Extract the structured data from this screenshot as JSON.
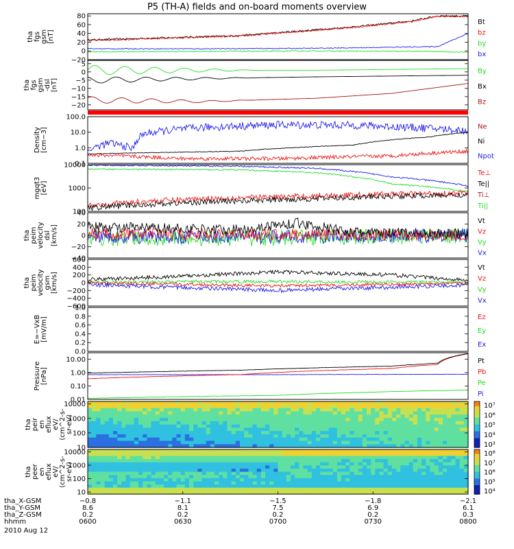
{
  "title": "P5 (TH-A) fields and on-board moments overview",
  "colors": {
    "black": "#000000",
    "red": "#ee1111",
    "green": "#22dd22",
    "blue": "#1a1aee",
    "darkred": "#aa1111"
  },
  "chart_data": [
    {
      "type": "line",
      "id": "fgs_gsm",
      "ylabel": [
        "tha",
        "fgs",
        "gsm",
        "[nT]"
      ],
      "ylim": [
        -20,
        85
      ],
      "yticks": [
        "80",
        "60",
        "40",
        "20",
        "0",
        "−20"
      ],
      "ytick_values": [
        80,
        60,
        40,
        20,
        0,
        -20
      ],
      "legend": [
        {
          "name": "Bt",
          "color": "#000000"
        },
        {
          "name": "bz",
          "color": "#ee1111"
        },
        {
          "name": "by",
          "color": "#22dd22"
        },
        {
          "name": "bx",
          "color": "#1a1aee"
        }
      ],
      "series": [
        {
          "name": "Bt",
          "color": "#000000",
          "points": [
            [
              0,
              25
            ],
            [
              0.2,
              30
            ],
            [
              0.4,
              35
            ],
            [
              0.55,
              45
            ],
            [
              0.7,
              55
            ],
            [
              0.85,
              68
            ],
            [
              0.92,
              80
            ]
          ],
          "noise": 2
        },
        {
          "name": "bz",
          "color": "#ee1111",
          "points": [
            [
              0,
              24
            ],
            [
              0.2,
              29
            ],
            [
              0.4,
              34
            ],
            [
              0.55,
              44
            ],
            [
              0.7,
              54
            ],
            [
              0.85,
              67
            ],
            [
              0.92,
              79
            ]
          ],
          "noise": 2
        },
        {
          "name": "by",
          "color": "#22dd22",
          "points": [
            [
              0,
              -2
            ],
            [
              0.3,
              -1
            ],
            [
              0.6,
              0
            ],
            [
              0.9,
              -1
            ],
            [
              1,
              -3
            ]
          ],
          "noise": 1
        },
        {
          "name": "bx",
          "color": "#1a1aee",
          "points": [
            [
              0,
              5
            ],
            [
              0.3,
              5
            ],
            [
              0.6,
              6
            ],
            [
              0.92,
              10
            ],
            [
              1,
              40
            ]
          ],
          "noise": 1
        }
      ]
    },
    {
      "type": "line",
      "id": "fgs_dsl",
      "ylabel": [
        "tha",
        "fgs",
        "gsm",
        "-dsl",
        "[nT]"
      ],
      "ylim": [
        -23,
        7
      ],
      "yticks": [
        "5",
        "0",
        "−5",
        "−10",
        "−15",
        "−20"
      ],
      "ytick_values": [
        5,
        0,
        -5,
        -10,
        -15,
        -20
      ],
      "legend": [
        {
          "name": "By",
          "color": "#22dd22"
        },
        {
          "name": "Bx",
          "color": "#000000"
        },
        {
          "name": "Bz",
          "color": "#aa1111"
        }
      ],
      "series": [
        {
          "name": "By",
          "color": "#22dd22",
          "points": [
            [
              0,
              1
            ],
            [
              0.3,
              1
            ],
            [
              0.6,
              1
            ],
            [
              1,
              2
            ]
          ],
          "wave": 3
        },
        {
          "name": "Bx",
          "color": "#000000",
          "points": [
            [
              0,
              -5
            ],
            [
              0.3,
              -4
            ],
            [
              0.6,
              -3
            ],
            [
              1,
              -2
            ]
          ],
          "wave": 2
        },
        {
          "name": "Bz",
          "color": "#aa1111",
          "points": [
            [
              0,
              -17
            ],
            [
              0.3,
              -18
            ],
            [
              0.6,
              -16
            ],
            [
              0.8,
              -13
            ],
            [
              1,
              -7
            ]
          ],
          "wave": 2
        }
      ]
    },
    {
      "type": "line",
      "id": "density",
      "ylabel": [
        "Density",
        "[cm−3]"
      ],
      "ylog": true,
      "ylim": [
        0.1,
        100
      ],
      "yticks": [
        "100.0",
        "10.0",
        "1.0",
        "0.1"
      ],
      "ytick_values": [
        100,
        10,
        1,
        0.1
      ],
      "legend": [
        {
          "name": "Ne",
          "color": "#aa1111"
        },
        {
          "name": "Ni",
          "color": "#000000"
        },
        {
          "name": "Npot",
          "color": "#1a1aee"
        }
      ],
      "series": [
        {
          "name": "Npot",
          "color": "#1a1aee",
          "points": [
            [
              0,
              0.6
            ],
            [
              0.06,
              2
            ],
            [
              0.12,
              0.8
            ],
            [
              0.15,
              8
            ],
            [
              0.3,
              20
            ],
            [
              0.5,
              30
            ],
            [
              0.7,
              28
            ],
            [
              0.9,
              18
            ],
            [
              1,
              12
            ]
          ],
          "noise": 0.25
        },
        {
          "name": "Ni",
          "color": "#000000",
          "points": [
            [
              0,
              0.4
            ],
            [
              0.4,
              0.6
            ],
            [
              0.7,
              1.5
            ],
            [
              0.9,
              5
            ],
            [
              1,
              10
            ]
          ],
          "noise": 0.02
        },
        {
          "name": "Ne",
          "color": "#ee1111",
          "points": [
            [
              0,
              0.35
            ],
            [
              0.25,
              0.2
            ],
            [
              0.5,
              0.2
            ],
            [
              0.8,
              0.3
            ],
            [
              1,
              0.6
            ]
          ],
          "noise": 0.12
        }
      ]
    },
    {
      "type": "line",
      "id": "temperature",
      "ylabel": [
        "mgqt3",
        "[eV]"
      ],
      "ylog": true,
      "ylim": [
        100,
        10000
      ],
      "yticks": [
        "10000",
        "1000",
        "100"
      ],
      "ytick_values": [
        10000,
        1000,
        100
      ],
      "legend": [
        {
          "name": "Te⊥",
          "color": "#ee1111"
        },
        {
          "name": "Te||",
          "color": "#000000"
        },
        {
          "name": "Ti⊥",
          "color": "#aa1111"
        },
        {
          "name": "Ti||",
          "color": "#22dd22"
        }
      ],
      "series": [
        {
          "name": "Ti⊥",
          "color": "#1a1aee",
          "points": [
            [
              0,
              9500
            ],
            [
              0.4,
              8500
            ],
            [
              0.6,
              7000
            ],
            [
              0.8,
              3000
            ],
            [
              1,
              1200
            ]
          ],
          "noise": 0.03
        },
        {
          "name": "Ti||",
          "color": "#22dd22",
          "points": [
            [
              0,
              6500
            ],
            [
              0.4,
              6000
            ],
            [
              0.6,
              4500
            ],
            [
              0.8,
              1500
            ],
            [
              1,
              700
            ]
          ],
          "noise": 0.03
        },
        {
          "name": "Te⊥",
          "color": "#ee1111",
          "points": [
            [
              0,
              180
            ],
            [
              0.3,
              350
            ],
            [
              0.6,
              450
            ],
            [
              0.8,
              550
            ],
            [
              1,
              600
            ]
          ],
          "noise": 0.12
        },
        {
          "name": "Te||",
          "color": "#000000",
          "points": [
            [
              0,
              140
            ],
            [
              0.3,
              250
            ],
            [
              0.6,
              350
            ],
            [
              0.8,
              450
            ],
            [
              1,
              500
            ]
          ],
          "noise": 0.12
        }
      ]
    },
    {
      "type": "line",
      "id": "peim_dsl",
      "ylabel": [
        "tha",
        "peim",
        "velocity",
        "dsl",
        "[km/s]"
      ],
      "ylim": [
        -40,
        40
      ],
      "yticks": [
        "40",
        "20",
        "0",
        "−20",
        "−40"
      ],
      "ytick_values": [
        40,
        20,
        0,
        -20,
        -40
      ],
      "legend": [
        {
          "name": "Vt",
          "color": "#000000"
        },
        {
          "name": "Vz",
          "color": "#ee1111"
        },
        {
          "name": "Vy",
          "color": "#22dd22"
        },
        {
          "name": "Vx",
          "color": "#1a1aee"
        }
      ],
      "series": [
        {
          "name": "Vy",
          "color": "#22dd22",
          "points": [
            [
              0,
              -5
            ],
            [
              0.5,
              -5
            ],
            [
              1,
              0
            ]
          ],
          "noise": 14
        },
        {
          "name": "Vx",
          "color": "#1a1aee",
          "points": [
            [
              0,
              -2
            ],
            [
              0.5,
              -3
            ],
            [
              1,
              0
            ]
          ],
          "noise": 12
        },
        {
          "name": "Vz",
          "color": "#ee1111",
          "points": [
            [
              0,
              3
            ],
            [
              0.5,
              2
            ],
            [
              1,
              0
            ]
          ],
          "noise": 10
        },
        {
          "name": "Vt",
          "color": "#000000",
          "points": [
            [
              0,
              15
            ],
            [
              0.4,
              10
            ],
            [
              0.55,
              22
            ],
            [
              0.7,
              5
            ],
            [
              1,
              3
            ]
          ],
          "noise": 9
        }
      ]
    },
    {
      "type": "line",
      "id": "peim_gsm",
      "ylabel": [
        "tha",
        "peim",
        "velocity",
        "gsm",
        "[km/s]"
      ],
      "ylim": [
        -600,
        600
      ],
      "yticks": [
        "600",
        "400",
        "200",
        "0",
        "−200",
        "−400",
        "−600"
      ],
      "ytick_values": [
        600,
        400,
        200,
        0,
        -200,
        -400,
        -600
      ],
      "legend": [
        {
          "name": "Vt",
          "color": "#000000"
        },
        {
          "name": "Vz",
          "color": "#ee1111"
        },
        {
          "name": "Vy",
          "color": "#22dd22"
        },
        {
          "name": "Vx",
          "color": "#1a1aee"
        }
      ],
      "series": [
        {
          "name": "Vt",
          "color": "#000000",
          "points": [
            [
              0,
              80
            ],
            [
              0.2,
              150
            ],
            [
              0.5,
              280
            ],
            [
              0.8,
              200
            ],
            [
              1,
              60
            ]
          ],
          "noise": 50
        },
        {
          "name": "Vy",
          "color": "#22dd22",
          "points": [
            [
              0,
              20
            ],
            [
              0.5,
              30
            ],
            [
              1,
              10
            ]
          ],
          "noise": 40
        },
        {
          "name": "Vz",
          "color": "#ee1111",
          "points": [
            [
              0,
              0
            ],
            [
              0.5,
              -80
            ],
            [
              1,
              -20
            ]
          ],
          "noise": 40
        },
        {
          "name": "Vx",
          "color": "#1a1aee",
          "points": [
            [
              0,
              -50
            ],
            [
              0.5,
              -200
            ],
            [
              1,
              -60
            ]
          ],
          "noise": 50
        }
      ]
    },
    {
      "type": "line",
      "id": "efield",
      "ylabel": [
        "E=−VxB",
        "[mV/m]"
      ],
      "ylim": [
        0,
        1
      ],
      "yticks": [
        "1.0",
        "0.8",
        "0.6",
        "0.4",
        "0.2",
        "0.0"
      ],
      "ytick_values": [
        1,
        0.8,
        0.6,
        0.4,
        0.2,
        0
      ],
      "legend": [
        {
          "name": "Ez",
          "color": "#ee1111"
        },
        {
          "name": "Ey",
          "color": "#22dd22"
        },
        {
          "name": "Ex",
          "color": "#1a1aee"
        }
      ],
      "series": []
    },
    {
      "type": "line",
      "id": "pressure",
      "ylabel": [
        "Pressure",
        "[nPa]"
      ],
      "ylog": true,
      "ylim": [
        0.01,
        30
      ],
      "yticks": [
        "10.00",
        "1.00",
        "0.10",
        "0.01"
      ],
      "ytick_values": [
        10,
        1,
        0.1,
        0.01
      ],
      "legend": [
        {
          "name": "Pt",
          "color": "#000000"
        },
        {
          "name": "Pb",
          "color": "#ee1111"
        },
        {
          "name": "Pe",
          "color": "#22dd22"
        },
        {
          "name": "Pi",
          "color": "#1a1aee"
        }
      ],
      "series": [
        {
          "name": "Pi",
          "color": "#1a1aee",
          "points": [
            [
              0,
              0.7
            ],
            [
              0.5,
              0.7
            ],
            [
              1,
              0.75
            ]
          ],
          "noise": 0.01
        },
        {
          "name": "Pe",
          "color": "#22dd22",
          "points": [
            [
              0,
              0.012
            ],
            [
              0.5,
              0.02
            ],
            [
              1,
              0.05
            ]
          ],
          "noise": 0.01
        },
        {
          "name": "Pb",
          "color": "#ee1111",
          "points": [
            [
              0,
              0.35
            ],
            [
              0.4,
              0.7
            ],
            [
              0.8,
              2
            ],
            [
              0.92,
              4
            ],
            [
              1,
              25
            ]
          ],
          "noise": 0.01
        },
        {
          "name": "Pt",
          "color": "#000000",
          "points": [
            [
              0,
              0.9
            ],
            [
              0.4,
              1.5
            ],
            [
              0.8,
              3
            ],
            [
              0.92,
              5
            ],
            [
              1,
              26
            ]
          ],
          "noise": 0.01
        }
      ]
    },
    {
      "type": "heatmap",
      "id": "peir",
      "ylabel": [
        "tha",
        "peir",
        "en",
        "eflux",
        "eV/",
        "(cm^2-s-",
        "sr-eV)"
      ],
      "ylog": true,
      "ylim": [
        10,
        15000
      ],
      "yticks": [
        "10000",
        "1000",
        "100",
        "10"
      ],
      "ytick_values": [
        10000,
        1000,
        100,
        10
      ],
      "colorbar_ticks": [
        "10⁷",
        "10⁶",
        "10⁵",
        "10⁴",
        "10³"
      ],
      "colorbar_log": [
        7,
        3
      ]
    },
    {
      "type": "heatmap",
      "id": "peer",
      "ylabel": [
        "tha",
        "peer",
        "en",
        "eflux",
        "eV/",
        "(cm^2-s-",
        "sr-eV)"
      ],
      "ylog": true,
      "ylim": [
        7,
        15000
      ],
      "yticks": [
        "10000",
        "1000",
        "100",
        "10"
      ],
      "ytick_values": [
        10000,
        1000,
        100,
        10
      ],
      "colorbar_ticks": [
        "10⁸",
        "10⁷",
        "10⁶",
        "10⁵",
        "10⁴"
      ],
      "colorbar_log": [
        8,
        4
      ]
    }
  ],
  "footer": {
    "rows": [
      {
        "label": "tha_X-GSM",
        "values": [
          "−0.8",
          "−1.1",
          "−1.5",
          "−1.8",
          "−2.1"
        ]
      },
      {
        "label": "tha_Y-GSM",
        "values": [
          "8.6",
          "8.1",
          "7.5",
          "6.9",
          "6.1"
        ]
      },
      {
        "label": "tha_Z-GSM",
        "values": [
          "0.2",
          "0.2",
          "0.2",
          "0.2",
          "0.3"
        ]
      },
      {
        "label": "hhmm",
        "values": [
          "0600",
          "0630",
          "0700",
          "0730",
          "0800"
        ]
      }
    ],
    "date": "2010 Aug 12"
  }
}
